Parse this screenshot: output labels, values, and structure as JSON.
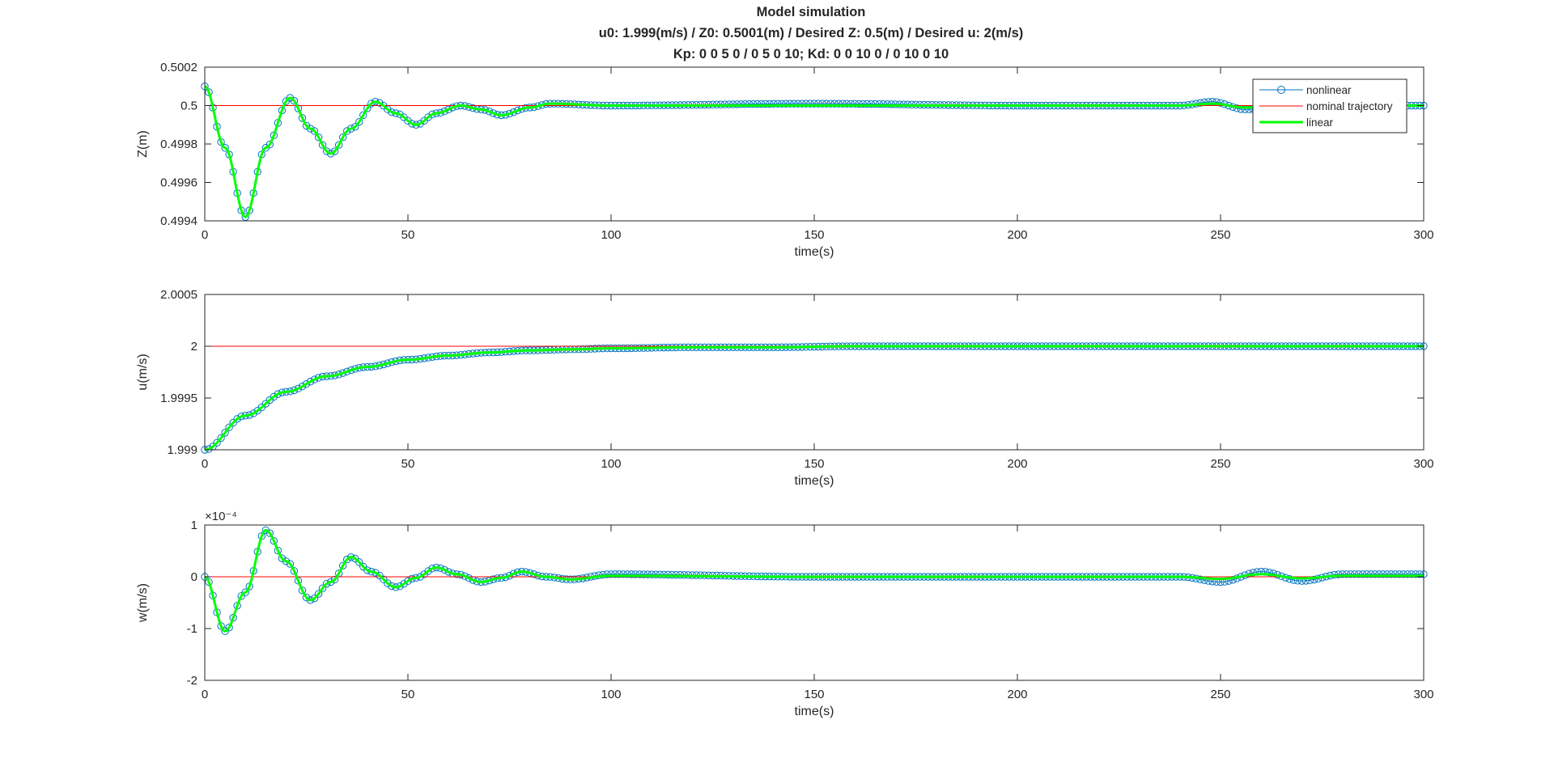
{
  "figure_title": [
    "Model simulation",
    "u0: 1.999(m/s) / Z0: 0.5001(m) / Desired Z: 0.5(m) / Desired u: 2(m/s)",
    "Kp: 0   0   5   0 / 0    5    0   10; Kd: 0    0   10    0 / 0   10    0   10"
  ],
  "colors": {
    "nonlinear": "#0072BD",
    "nominal": "#FF0000",
    "linear": "#00FF00",
    "axes": "#262626"
  },
  "chart_data": [
    {
      "type": "line",
      "id": "z",
      "xlabel": "time(s)",
      "ylabel": "Z(m)",
      "xlim": [
        0,
        300
      ],
      "ylim": [
        0.4994,
        0.5002
      ],
      "xticks": [
        0,
        50,
        100,
        150,
        200,
        250,
        300
      ],
      "yticks": [
        0.4994,
        0.4996,
        0.4998,
        0.5,
        0.5002
      ],
      "ytick_labels": [
        "0.4994",
        "0.4996",
        "0.4998",
        "0.5",
        "0.5002"
      ],
      "exponent_label": "",
      "legend": {
        "position": "top-right",
        "entries": [
          "nonlinear",
          "nominal trajectory",
          "linear"
        ]
      },
      "nominal_value": 0.5,
      "series": [
        {
          "name": "nonlinear",
          "x": [
            0,
            5,
            10,
            15,
            21,
            26,
            31,
            36,
            42,
            47,
            52,
            57,
            63,
            68,
            73,
            80,
            85,
            100,
            150,
            200,
            230,
            240,
            248,
            256,
            265,
            280,
            300
          ],
          "values": [
            0.5001,
            0.49978,
            0.49942,
            0.49978,
            0.50004,
            0.49988,
            0.49975,
            0.49988,
            0.50002,
            0.49996,
            0.4999,
            0.49996,
            0.5,
            0.49998,
            0.49995,
            0.49999,
            0.50001,
            0.5,
            0.50001,
            0.5,
            0.5,
            0.5,
            0.50002,
            0.49998,
            0.49999,
            0.5,
            0.5
          ]
        },
        {
          "name": "linear",
          "x": [
            0,
            5,
            10,
            15,
            21,
            26,
            31,
            36,
            42,
            47,
            52,
            57,
            63,
            68,
            73,
            80,
            85,
            100,
            150,
            200,
            230,
            240,
            248,
            256,
            265,
            280,
            300
          ],
          "values": [
            0.5001,
            0.49978,
            0.49942,
            0.49978,
            0.50004,
            0.49988,
            0.49975,
            0.49988,
            0.50002,
            0.49996,
            0.4999,
            0.49996,
            0.5,
            0.49998,
            0.49995,
            0.49999,
            0.50001,
            0.5,
            0.5,
            0.5,
            0.5,
            0.5,
            0.50001,
            0.49999,
            0.5,
            0.5,
            0.5
          ]
        }
      ]
    },
    {
      "type": "line",
      "id": "u",
      "xlabel": "time(s)",
      "ylabel": "u(m/s)",
      "xlim": [
        0,
        300
      ],
      "ylim": [
        1.999,
        2.0005
      ],
      "xticks": [
        0,
        50,
        100,
        150,
        200,
        250,
        300
      ],
      "yticks": [
        1.999,
        1.9995,
        2,
        2.0005
      ],
      "ytick_labels": [
        "1.999",
        "1.9995",
        "2",
        "2.0005"
      ],
      "exponent_label": "",
      "nominal_value": 2,
      "series": [
        {
          "name": "nonlinear",
          "x": [
            0,
            10,
            20,
            30,
            40,
            50,
            60,
            70,
            80,
            90,
            100,
            120,
            140,
            160,
            200,
            250,
            300
          ],
          "values": [
            1.999,
            1.99933,
            1.99956,
            1.99971,
            1.9998,
            1.99987,
            1.99991,
            1.99994,
            1.99996,
            1.99997,
            1.99998,
            1.99999,
            1.99999,
            2,
            2,
            2,
            2
          ]
        },
        {
          "name": "linear",
          "x": [
            0,
            10,
            20,
            30,
            40,
            50,
            60,
            70,
            80,
            90,
            100,
            120,
            140,
            160,
            200,
            250,
            300
          ],
          "values": [
            1.999,
            1.99933,
            1.99956,
            1.99971,
            1.9998,
            1.99987,
            1.99991,
            1.99994,
            1.99996,
            1.99997,
            1.99998,
            1.99999,
            1.99999,
            2,
            2,
            2,
            2
          ]
        }
      ]
    },
    {
      "type": "line",
      "id": "w",
      "xlabel": "time(s)",
      "ylabel": "w(m/s)",
      "xlim": [
        0,
        300
      ],
      "ylim": [
        -2,
        1
      ],
      "xticks": [
        0,
        50,
        100,
        150,
        200,
        250,
        300
      ],
      "yticks": [
        -2,
        -1,
        0,
        1
      ],
      "ytick_labels": [
        "-2",
        "-1",
        "0",
        "1"
      ],
      "exponent_label": "×10⁻⁴",
      "nominal_value": 0,
      "series": [
        {
          "name": "nonlinear",
          "x": [
            0,
            5,
            10,
            15,
            20,
            26,
            31,
            36,
            41,
            47,
            52,
            57,
            62,
            68,
            73,
            78,
            84,
            90,
            100,
            150,
            200,
            240,
            250,
            260,
            270,
            280,
            300
          ],
          "values": [
            0,
            -1.05,
            -0.3,
            0.9,
            0.3,
            -0.45,
            -0.1,
            0.38,
            0.1,
            -0.2,
            -0.02,
            0.18,
            0.05,
            -0.1,
            -0.02,
            0.1,
            0,
            -0.05,
            0.05,
            0,
            0,
            0,
            -0.1,
            0.1,
            -0.08,
            0.05,
            0.05
          ]
        },
        {
          "name": "linear",
          "x": [
            0,
            5,
            10,
            15,
            20,
            26,
            31,
            36,
            41,
            47,
            52,
            57,
            62,
            68,
            73,
            78,
            84,
            90,
            100,
            150,
            200,
            240,
            250,
            260,
            270,
            280,
            300
          ],
          "values": [
            0,
            -1.05,
            -0.3,
            0.9,
            0.3,
            -0.45,
            -0.1,
            0.38,
            0.1,
            -0.2,
            -0.02,
            0.18,
            0.05,
            -0.1,
            -0.02,
            0.1,
            0,
            -0.05,
            0.02,
            0,
            0,
            0,
            -0.04,
            0.05,
            -0.03,
            0.02,
            0.02
          ]
        }
      ]
    }
  ]
}
